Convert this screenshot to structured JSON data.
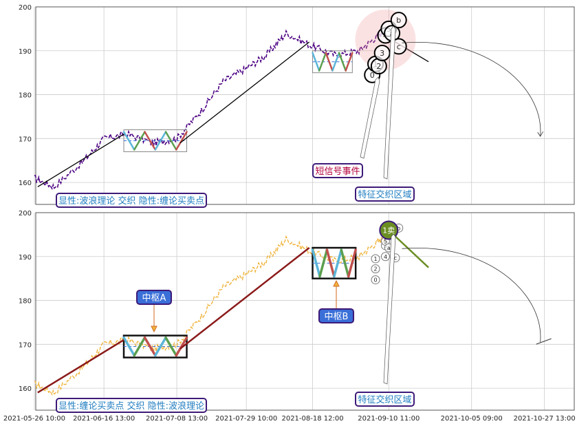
{
  "chart_data": [
    {
      "type": "line",
      "panel": "top",
      "ylim": [
        155,
        200
      ],
      "y_ticks": [
        "160",
        "170",
        "180",
        "190",
        "200"
      ],
      "grid": true,
      "series": [
        {
          "name": "",
          "color": "#4b0082",
          "x": [
            "2021-05-26",
            "2021-06-01",
            "2021-06-10",
            "2021-06-16",
            "2021-06-23",
            "2021-07-01",
            "2021-07-08",
            "2021-07-15",
            "2021-07-22",
            "2021-07-29",
            "2021-08-04",
            "2021-08-10",
            "2021-08-18",
            "2021-08-25",
            "2021-09-01",
            "2021-09-06",
            "2021-09-10"
          ],
          "values": [
            161,
            159,
            165,
            170,
            171,
            169,
            170,
            176,
            183,
            186,
            189,
            194,
            191,
            189,
            190,
            193,
            195
          ]
        }
      ],
      "wave_segments": [
        {
          "from": [
            "2021-05-27",
            159
          ],
          "to": [
            "2021-06-22",
            171
          ],
          "color": "#000000"
        },
        {
          "from": [
            "2021-07-09",
            169
          ],
          "to": [
            "2021-08-17",
            192
          ],
          "color": "#000000"
        },
        {
          "from": [
            "2021-09-12",
            192
          ],
          "to": [
            "2021-09-22",
            187.5
          ],
          "color": "#000000"
        }
      ],
      "zones": [
        {
          "x": [
            "2021-06-22",
            "2021-07-11"
          ],
          "y": [
            167,
            172
          ]
        },
        {
          "x": [
            "2021-08-18",
            "2021-08-30"
          ],
          "y": [
            185,
            190
          ]
        }
      ],
      "points": [
        {
          "label": "0",
          "x": "2021-09-05",
          "y": 184.5
        },
        {
          "label": "1",
          "x": "2021-09-06",
          "y": 187
        },
        {
          "label": "2",
          "x": "2021-09-07",
          "y": 186.5
        },
        {
          "label": "3",
          "x": "2021-09-08",
          "y": 189.5
        },
        {
          "label": "4",
          "x": "2021-09-09",
          "y": 193.5
        },
        {
          "label": "5",
          "x": "2021-09-10",
          "y": 195
        },
        {
          "label": "a",
          "x": "2021-09-11",
          "y": 194
        },
        {
          "label": "b",
          "x": "2021-09-13",
          "y": 197
        },
        {
          "label": "c",
          "x": "2021-09-13",
          "y": 191
        }
      ],
      "annotations": {
        "signal_event": "短信号事件",
        "feature_zone": "特征交织区域",
        "legend": "显性:波浪理论 交织 隐性:缠论买卖点"
      }
    },
    {
      "type": "line",
      "panel": "bottom",
      "ylim": [
        155,
        200
      ],
      "y_ticks": [
        "160",
        "170",
        "180",
        "190",
        "200"
      ],
      "grid": true,
      "series": [
        {
          "name": "",
          "color": "#f0b43c",
          "x": [
            "2021-05-26",
            "2021-06-01",
            "2021-06-10",
            "2021-06-16",
            "2021-06-23",
            "2021-07-01",
            "2021-07-08",
            "2021-07-15",
            "2021-07-22",
            "2021-07-29",
            "2021-08-04",
            "2021-08-10",
            "2021-08-18",
            "2021-08-25",
            "2021-09-01",
            "2021-09-06",
            "2021-09-10"
          ],
          "values": [
            161,
            159,
            165,
            170,
            171,
            169,
            170,
            176,
            183,
            186,
            189,
            194,
            191,
            189,
            190,
            193,
            195
          ]
        }
      ],
      "wave_segments": [
        {
          "from": [
            "2021-05-27",
            159
          ],
          "to": [
            "2021-06-22",
            171
          ],
          "color": "#8b1a1a"
        },
        {
          "from": [
            "2021-07-09",
            169
          ],
          "to": [
            "2021-08-17",
            192
          ],
          "color": "#8b1a1a"
        },
        {
          "from": [
            "2021-09-10",
            196
          ],
          "to": [
            "2021-09-22",
            187.5
          ],
          "color": "#6b8e23"
        }
      ],
      "zones": [
        {
          "x": [
            "2021-06-22",
            "2021-07-11"
          ],
          "y": [
            167,
            172
          ]
        },
        {
          "x": [
            "2021-08-18",
            "2021-08-31"
          ],
          "y": [
            185,
            192
          ]
        }
      ],
      "points": [
        {
          "label": "0",
          "x": "2021-09-06",
          "y": 184.7
        },
        {
          "label": "1",
          "x": "2021-09-06",
          "y": 189.5
        },
        {
          "label": "2",
          "x": "2021-09-06",
          "y": 187.2
        },
        {
          "label": "3",
          "x": "2021-09-09",
          "y": 192.5
        },
        {
          "label": "4",
          "x": "2021-09-09",
          "y": 190
        },
        {
          "label": "5",
          "x": "2021-09-09",
          "y": 193.5
        },
        {
          "label": "a",
          "x": "2021-09-10",
          "y": 192
        },
        {
          "label": "b",
          "x": "2021-09-13",
          "y": 196.5
        },
        {
          "label": "c",
          "x": "2021-09-12",
          "y": 189.7
        }
      ],
      "sell_point": {
        "label": "1卖",
        "x": "2021-09-10",
        "y": 196
      },
      "annotations": {
        "pivot_a": "中枢A",
        "pivot_b": "中枢B",
        "feature_zone": "特征交织区域",
        "legend": "显性:缠论买卖点 交织 隐性:波浪理论"
      }
    }
  ],
  "x_axis": {
    "tick_labels": [
      "2021-05-26 10:00",
      "2021-06-16 13:00",
      "2021-07-08 13:00",
      "2021-07-29 10:00",
      "2021-08-18 12:00",
      "2021-09-10 11:00",
      "2021-10-05 09:00",
      "2021-10-27 13:00"
    ]
  },
  "colors": {
    "purple_line": "#4b0082",
    "orange_line": "#f0b43c",
    "wave_blue": "#5bb5d8",
    "wave_green": "#5b9f4f",
    "wave_red": "#c0504d",
    "label_border": "#3d1a78",
    "label_text_blue": "#1f7cc0",
    "label_text_red": "#b3003c",
    "box_fill": "#3a6fd8",
    "olive": "#6b8e23"
  }
}
